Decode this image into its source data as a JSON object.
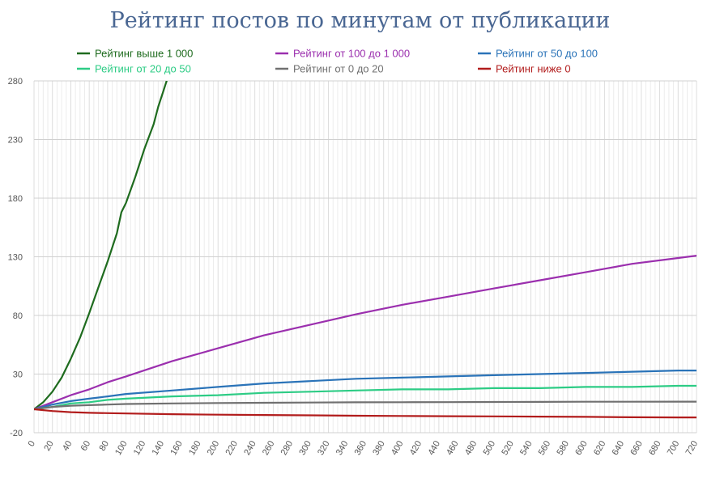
{
  "chart_data": {
    "type": "line",
    "title": "Рейтинг постов по минутам от публикации",
    "xlabel": "",
    "ylabel": "",
    "xlim": [
      0,
      720
    ],
    "ylim": [
      -20,
      280
    ],
    "xticks": [
      0,
      20,
      40,
      60,
      80,
      100,
      120,
      140,
      160,
      180,
      200,
      220,
      240,
      260,
      280,
      300,
      320,
      340,
      360,
      380,
      400,
      420,
      440,
      460,
      480,
      500,
      520,
      540,
      560,
      580,
      600,
      620,
      640,
      660,
      680,
      700,
      720
    ],
    "yticks": [
      -20,
      30,
      80,
      130,
      180,
      230,
      280
    ],
    "grid": true,
    "legend_position": "top",
    "series": [
      {
        "name": "Рейтинг выше 1 000",
        "color": "#1e6b1e",
        "x": [
          0,
          10,
          20,
          30,
          40,
          50,
          60,
          70,
          80,
          90,
          95,
          100,
          110,
          120,
          130,
          135,
          140,
          145
        ],
        "y": [
          0,
          6,
          15,
          27,
          43,
          61,
          82,
          104,
          126,
          150,
          168,
          176,
          198,
          222,
          243,
          258,
          270,
          282
        ]
      },
      {
        "name": "Рейтинг от 100 до 1 000",
        "color": "#9b2fae",
        "x": [
          0,
          20,
          40,
          60,
          80,
          100,
          150,
          200,
          250,
          300,
          350,
          400,
          450,
          500,
          550,
          600,
          650,
          700,
          720
        ],
        "y": [
          0,
          6,
          12,
          17,
          23,
          28,
          41,
          52,
          63,
          72,
          81,
          89,
          96,
          103,
          110,
          117,
          124,
          129,
          131
        ]
      },
      {
        "name": "Рейтинг от 50 до 100",
        "color": "#2a73b8",
        "x": [
          0,
          20,
          40,
          60,
          80,
          100,
          150,
          200,
          250,
          300,
          350,
          400,
          450,
          500,
          550,
          600,
          650,
          700,
          720
        ],
        "y": [
          0,
          4,
          7,
          9,
          11,
          13,
          16,
          19,
          22,
          24,
          26,
          27,
          28,
          29,
          30,
          31,
          32,
          33,
          33
        ]
      },
      {
        "name": "Рейтинг от 20 до 50",
        "color": "#2dcc85",
        "x": [
          0,
          20,
          40,
          60,
          80,
          100,
          150,
          200,
          250,
          300,
          350,
          400,
          450,
          500,
          550,
          600,
          650,
          700,
          720
        ],
        "y": [
          0,
          2,
          5,
          6,
          8,
          9,
          11,
          12,
          14,
          15,
          16,
          17,
          17,
          18,
          18,
          19,
          19,
          20,
          20
        ]
      },
      {
        "name": "Рейтинг от 0 до 20",
        "color": "#707070",
        "x": [
          0,
          20,
          40,
          60,
          80,
          100,
          150,
          200,
          250,
          300,
          350,
          400,
          450,
          500,
          550,
          600,
          650,
          700,
          720
        ],
        "y": [
          0,
          2,
          3,
          3.5,
          4,
          4.5,
          5,
          5.3,
          5.5,
          5.7,
          5.9,
          6,
          6.1,
          6.2,
          6.3,
          6.4,
          6.4,
          6.5,
          6.5
        ]
      },
      {
        "name": "Рейтинг ниже 0",
        "color": "#b21c1c",
        "x": [
          0,
          20,
          40,
          60,
          80,
          100,
          150,
          200,
          250,
          300,
          350,
          400,
          450,
          500,
          550,
          600,
          650,
          700,
          720
        ],
        "y": [
          0,
          -1.5,
          -2.5,
          -3,
          -3.3,
          -3.6,
          -4.2,
          -4.6,
          -4.9,
          -5.2,
          -5.5,
          -5.7,
          -5.9,
          -6.1,
          -6.3,
          -6.5,
          -6.8,
          -7,
          -7
        ]
      }
    ]
  }
}
